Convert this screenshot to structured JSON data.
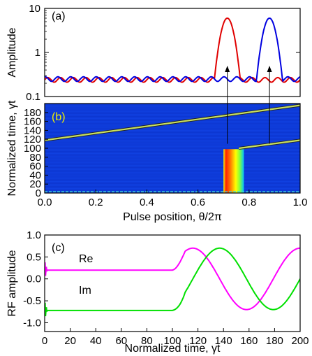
{
  "chart_data": [
    {
      "panel": "(a)",
      "type": "line",
      "ylabel": "Amplitude",
      "yscale": "log",
      "ylim": [
        0.1,
        10
      ],
      "xlim": [
        0.0,
        1.0
      ],
      "ytick_labels": [
        "0.1",
        "1",
        "10"
      ],
      "ytick_values": [
        0.1,
        1,
        10
      ],
      "series": [
        {
          "color": "#e00000",
          "baseline": 0.24,
          "peak_position": 0.715,
          "peak_value": 6.0,
          "peak_width": 0.02
        },
        {
          "color": "#0000e0",
          "baseline": 0.25,
          "peak_position": 0.88,
          "peak_value": 6.0,
          "peak_width": 0.02
        }
      ],
      "arrows": [
        {
          "from_theta": 0.715,
          "to_theta": 0.715
        },
        {
          "from_theta": 0.88,
          "to_theta": 0.88
        }
      ]
    },
    {
      "panel": "(b)",
      "type": "heatmap",
      "xlabel": "Pulse position, θ/2π",
      "ylabel": "Normalized time, γt",
      "xlim": [
        0.0,
        1.0
      ],
      "ylim": [
        0,
        200
      ],
      "xtick_labels": [
        "0.0",
        "0.2",
        "0.4",
        "0.6",
        "0.8",
        "1.0"
      ],
      "xtick_values": [
        0.0,
        0.2,
        0.4,
        0.6,
        0.8,
        1.0
      ],
      "ytick_labels": [
        "0",
        "20",
        "40",
        "60",
        "80",
        "100",
        "120",
        "140",
        "160",
        "180"
      ],
      "ytick_values": [
        0,
        20,
        40,
        60,
        80,
        100,
        120,
        140,
        160,
        180
      ],
      "background_color": "#1040e0",
      "diagonal_traces": [
        {
          "theta_start": 0.0,
          "t_start": 118,
          "theta_end": 1.0,
          "t_end": 196
        },
        {
          "theta_start": 0.76,
          "t_start": 100,
          "theta_end": 1.0,
          "t_end": 118
        }
      ],
      "pulse_block": {
        "theta_start": 0.7,
        "theta_end": 0.78,
        "t_start": 0,
        "t_end": 98
      }
    },
    {
      "panel": "(c)",
      "type": "line",
      "xlabel": "Normalized time, γt",
      "ylabel": "RF amplitude",
      "xlim": [
        0,
        200
      ],
      "ylim": [
        -1.2,
        1.0
      ],
      "xtick_labels": [
        "0",
        "20",
        "40",
        "60",
        "80",
        "100",
        "120",
        "140",
        "160",
        "180",
        "200"
      ],
      "xtick_values": [
        0,
        20,
        40,
        60,
        80,
        100,
        120,
        140,
        160,
        180,
        200
      ],
      "ytick_labels": [
        "1.0",
        "0.5",
        "0.0",
        "-0.5",
        "-1.0"
      ],
      "ytick_values": [
        1.0,
        0.5,
        0.0,
        -0.5,
        -1.0
      ],
      "series": [
        {
          "name": "Re",
          "color": "#ff00ff",
          "pre_value": 0.2,
          "switch_time": 100,
          "amplitude": 0.7,
          "peak_time": 116,
          "period": 84
        },
        {
          "name": "Im",
          "color": "#00e000",
          "pre_value": -0.72,
          "switch_time": 100,
          "amplitude": 0.7,
          "peak_time": 137,
          "period": 84
        }
      ]
    }
  ],
  "labels": {
    "panel_a": "(a)",
    "panel_b": "(b)",
    "panel_c": "(c)",
    "series_re": "Re",
    "series_im": "Im"
  }
}
